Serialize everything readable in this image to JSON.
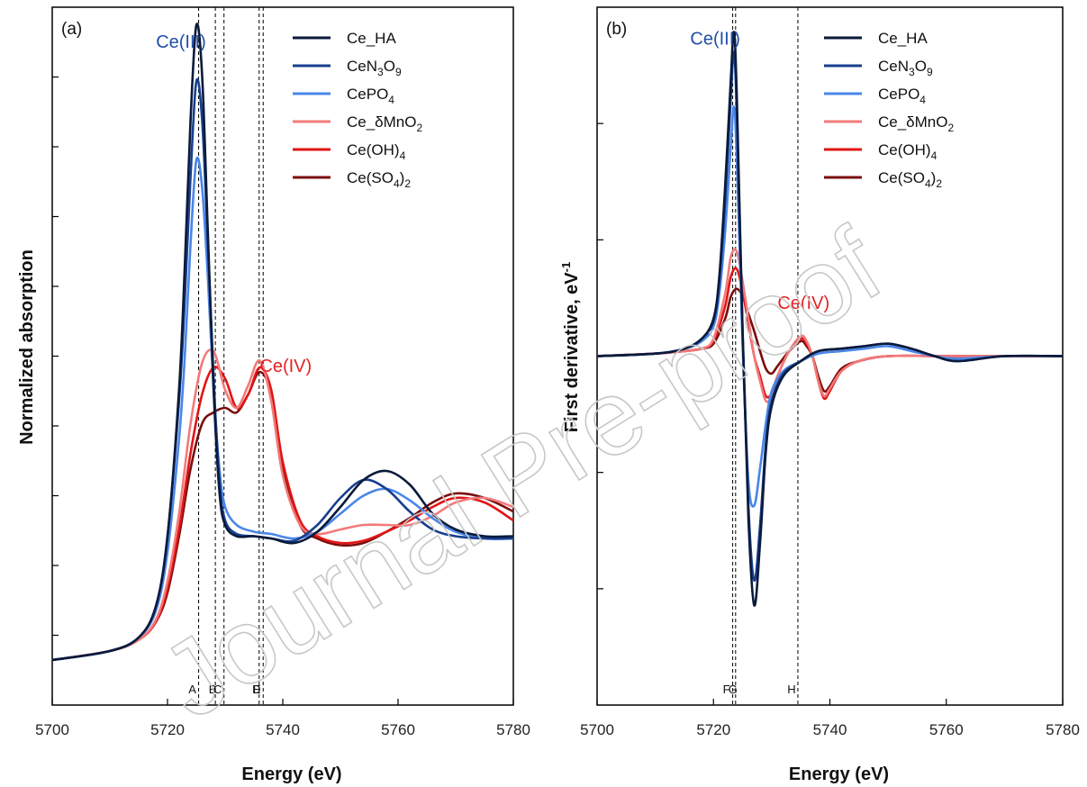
{
  "watermark": "Journal Pre-proof",
  "colors": {
    "Ce_HA": "#0a1a3a",
    "CeN3O9": "#173f8f",
    "CePO4": "#4a86e8",
    "Ce_dMnO2": "#f27a7a",
    "Ce(OH)4": "#e11515",
    "Ce(SO4)2": "#7a0d0d",
    "annotation_ce3": "#1f4fa8",
    "annotation_ce4": "#e32222"
  },
  "legend": [
    {
      "key": "Ce_HA",
      "parts": [
        {
          "t": "Ce_HA"
        }
      ]
    },
    {
      "key": "CeN3O9",
      "parts": [
        {
          "t": "CeN"
        },
        {
          "t": "3",
          "sub": true
        },
        {
          "t": "O"
        },
        {
          "t": "9",
          "sub": true
        }
      ]
    },
    {
      "key": "CePO4",
      "parts": [
        {
          "t": "CePO"
        },
        {
          "t": "4",
          "sub": true
        }
      ]
    },
    {
      "key": "Ce_dMnO2",
      "parts": [
        {
          "t": "Ce_δMnO"
        },
        {
          "t": "2",
          "sub": true
        }
      ]
    },
    {
      "key": "Ce(OH)4",
      "parts": [
        {
          "t": "Ce(OH)"
        },
        {
          "t": "4",
          "sub": true
        }
      ]
    },
    {
      "key": "Ce(SO4)2",
      "parts": [
        {
          "t": "Ce(SO"
        },
        {
          "t": "4",
          "sub": true
        },
        {
          "t": ")"
        },
        {
          "t": "2",
          "sub": true
        }
      ]
    }
  ],
  "chart_data": [
    {
      "type": "line",
      "panel": "(a)",
      "xlabel": "Energy (eV)",
      "ylabel": "Normalized absorption",
      "xlim": [
        5700,
        5780
      ],
      "ylim": [
        -0.2,
        2.9
      ],
      "x_ticks": [
        "5700",
        "5720",
        "5740",
        "5760",
        "5780"
      ],
      "annotations": [
        {
          "text": "Ce(III)",
          "x": 5718,
          "y": 2.72,
          "color": "annotation_ce3"
        },
        {
          "text": "Ce(IV)",
          "x": 5736,
          "y": 1.28,
          "color": "annotation_ce4"
        }
      ],
      "markers": [
        {
          "label": "A",
          "x": 5725.4
        },
        {
          "label": "B",
          "x": 5728.3
        },
        {
          "label": "C",
          "x": 5729.8
        },
        {
          "label": "D",
          "x": 5735.9
        },
        {
          "label": "E",
          "x": 5736.6
        }
      ],
      "series": [
        {
          "name": "Ce_HA",
          "key": "Ce_HA",
          "x": [
            5700,
            5710,
            5715,
            5718,
            5720,
            5722,
            5723,
            5724,
            5725,
            5726,
            5727,
            5728,
            5729,
            5730,
            5732,
            5735,
            5738,
            5742,
            5746,
            5750,
            5754,
            5758,
            5762,
            5766,
            5770,
            5775,
            5780
          ],
          "y": [
            0.0,
            0.04,
            0.1,
            0.24,
            0.55,
            1.2,
            1.75,
            2.4,
            2.82,
            2.6,
            1.9,
            1.2,
            0.75,
            0.6,
            0.55,
            0.55,
            0.54,
            0.52,
            0.57,
            0.68,
            0.8,
            0.84,
            0.78,
            0.65,
            0.58,
            0.55,
            0.55
          ]
        },
        {
          "name": "CeN3O9",
          "key": "CeN3O9",
          "x": [
            5700,
            5710,
            5715,
            5718,
            5720,
            5722,
            5723,
            5724,
            5725,
            5726,
            5727,
            5728,
            5729,
            5730,
            5732,
            5735,
            5738,
            5742,
            5746,
            5750,
            5754,
            5758,
            5762,
            5766,
            5770,
            5775,
            5780
          ],
          "y": [
            0.0,
            0.04,
            0.1,
            0.24,
            0.55,
            1.15,
            1.6,
            2.15,
            2.57,
            2.4,
            1.85,
            1.25,
            0.8,
            0.62,
            0.56,
            0.55,
            0.54,
            0.53,
            0.6,
            0.72,
            0.8,
            0.76,
            0.66,
            0.58,
            0.55,
            0.54,
            0.54
          ]
        },
        {
          "name": "CePO4",
          "key": "CePO4",
          "x": [
            5700,
            5710,
            5715,
            5718,
            5720,
            5722,
            5723,
            5724,
            5725,
            5726,
            5727,
            5728,
            5729,
            5730,
            5732,
            5735,
            5738,
            5742,
            5746,
            5750,
            5754,
            5758,
            5762,
            5766,
            5770,
            5775,
            5780
          ],
          "y": [
            0.0,
            0.04,
            0.1,
            0.22,
            0.48,
            0.98,
            1.35,
            1.85,
            2.22,
            2.1,
            1.7,
            1.2,
            0.85,
            0.68,
            0.6,
            0.57,
            0.56,
            0.54,
            0.57,
            0.65,
            0.73,
            0.76,
            0.71,
            0.63,
            0.57,
            0.54,
            0.54
          ]
        },
        {
          "name": "Ce_δMnO2",
          "key": "Ce_dMnO2",
          "x": [
            5700,
            5710,
            5715,
            5718,
            5720,
            5722,
            5724,
            5726,
            5728,
            5730,
            5732,
            5734,
            5736,
            5738,
            5740,
            5743,
            5746,
            5750,
            5754,
            5758,
            5762,
            5766,
            5770,
            5775,
            5780
          ],
          "y": [
            0.0,
            0.04,
            0.09,
            0.18,
            0.35,
            0.65,
            1.05,
            1.32,
            1.37,
            1.2,
            1.12,
            1.22,
            1.33,
            1.15,
            0.82,
            0.6,
            0.56,
            0.58,
            0.6,
            0.6,
            0.6,
            0.64,
            0.7,
            0.72,
            0.68
          ]
        },
        {
          "name": "Ce(OH)4",
          "key": "Ce(OH)4",
          "x": [
            5700,
            5710,
            5715,
            5718,
            5720,
            5722,
            5724,
            5726,
            5728,
            5730,
            5732,
            5734,
            5736,
            5738,
            5740,
            5743,
            5746,
            5750,
            5754,
            5758,
            5762,
            5766,
            5770,
            5775,
            5780
          ],
          "y": [
            0.0,
            0.04,
            0.09,
            0.17,
            0.32,
            0.58,
            0.92,
            1.18,
            1.3,
            1.25,
            1.12,
            1.18,
            1.3,
            1.2,
            0.88,
            0.62,
            0.55,
            0.52,
            0.53,
            0.57,
            0.62,
            0.68,
            0.72,
            0.7,
            0.62
          ]
        },
        {
          "name": "Ce(SO4)2",
          "key": "Ce(SO4)2",
          "x": [
            5700,
            5710,
            5715,
            5718,
            5720,
            5722,
            5724,
            5726,
            5728,
            5730,
            5732,
            5734,
            5736,
            5738,
            5740,
            5743,
            5746,
            5750,
            5754,
            5758,
            5762,
            5766,
            5770,
            5775,
            5780
          ],
          "y": [
            0.0,
            0.04,
            0.09,
            0.17,
            0.3,
            0.55,
            0.85,
            1.05,
            1.1,
            1.12,
            1.1,
            1.18,
            1.28,
            1.18,
            0.86,
            0.6,
            0.54,
            0.51,
            0.52,
            0.57,
            0.63,
            0.7,
            0.74,
            0.72,
            0.66
          ]
        }
      ]
    },
    {
      "type": "line",
      "panel": "(b)",
      "xlabel": "Energy (eV)",
      "ylabel": "First derivative, eV",
      "ylabel_sup": "-1",
      "xlim": [
        5700,
        5780
      ],
      "ylim": [
        -1.4,
        1.4
      ],
      "x_ticks": [
        "5700",
        "5720",
        "5740",
        "5760",
        "5780"
      ],
      "annotations": [
        {
          "text": "Ce(III)",
          "x": 5716,
          "y": 1.25,
          "color": "annotation_ce3"
        },
        {
          "text": "Ce(IV)",
          "x": 5731,
          "y": 0.19,
          "color": "annotation_ce4"
        }
      ],
      "markers": [
        {
          "label": "F",
          "x": 5723.3
        },
        {
          "label": "G",
          "x": 5723.8
        },
        {
          "label": "H",
          "x": 5734.5
        }
      ],
      "series": [
        {
          "name": "Ce_HA",
          "key": "Ce_HA",
          "x": [
            5700,
            5710,
            5715,
            5718,
            5720,
            5721,
            5722,
            5723,
            5723.5,
            5724,
            5725,
            5726,
            5727,
            5728,
            5729,
            5730,
            5732,
            5735,
            5738,
            5742,
            5746,
            5750,
            5754,
            5758,
            5762,
            5770,
            5780
          ],
          "y": [
            0.0,
            0.01,
            0.03,
            0.07,
            0.15,
            0.32,
            0.68,
            1.12,
            1.3,
            1.05,
            0.1,
            -0.65,
            -1.0,
            -0.75,
            -0.38,
            -0.2,
            -0.08,
            -0.02,
            0.02,
            0.03,
            0.04,
            0.05,
            0.03,
            0.0,
            -0.02,
            0.0,
            0.0
          ]
        },
        {
          "name": "CeN3O9",
          "key": "CeN3O9",
          "x": [
            5700,
            5710,
            5715,
            5718,
            5720,
            5721,
            5722,
            5723,
            5723.5,
            5724,
            5725,
            5726,
            5727,
            5728,
            5729,
            5730,
            5732,
            5735,
            5738,
            5742,
            5746,
            5750,
            5754,
            5758,
            5762,
            5770,
            5780
          ],
          "y": [
            0.0,
            0.01,
            0.03,
            0.07,
            0.14,
            0.3,
            0.62,
            1.05,
            1.22,
            0.98,
            0.1,
            -0.6,
            -0.9,
            -0.68,
            -0.35,
            -0.18,
            -0.07,
            -0.02,
            0.02,
            0.03,
            0.04,
            0.05,
            0.03,
            0.0,
            -0.02,
            0.0,
            0.0
          ]
        },
        {
          "name": "CePO4",
          "key": "CePO4",
          "x": [
            5700,
            5710,
            5715,
            5718,
            5720,
            5721,
            5722,
            5723,
            5723.5,
            5724,
            5725,
            5726,
            5727,
            5728,
            5729,
            5730,
            5732,
            5735,
            5738,
            5742,
            5746,
            5750,
            5754,
            5758,
            5762,
            5770,
            5780
          ],
          "y": [
            0.0,
            0.01,
            0.03,
            0.06,
            0.12,
            0.25,
            0.5,
            0.85,
            1.0,
            0.8,
            0.05,
            -0.5,
            -0.6,
            -0.45,
            -0.27,
            -0.14,
            -0.06,
            -0.02,
            0.01,
            0.02,
            0.03,
            0.04,
            0.02,
            0.0,
            -0.01,
            0.0,
            0.0
          ]
        },
        {
          "name": "Ce_δMnO2",
          "key": "Ce_dMnO2",
          "x": [
            5700,
            5710,
            5715,
            5718,
            5720,
            5722,
            5723,
            5724,
            5725,
            5726,
            5727,
            5728,
            5729,
            5730,
            5731,
            5733,
            5735,
            5736,
            5737,
            5738,
            5739,
            5740,
            5742,
            5745,
            5750,
            5760,
            5780
          ],
          "y": [
            0.0,
            0.01,
            0.02,
            0.03,
            0.07,
            0.25,
            0.4,
            0.42,
            0.3,
            0.15,
            0.0,
            -0.1,
            -0.18,
            -0.16,
            -0.08,
            0.02,
            0.08,
            0.06,
            0.0,
            -0.1,
            -0.16,
            -0.13,
            -0.06,
            -0.02,
            0.0,
            0.0,
            0.0
          ]
        },
        {
          "name": "Ce(OH)4",
          "key": "Ce(OH)4",
          "x": [
            5700,
            5710,
            5715,
            5718,
            5720,
            5722,
            5723,
            5724,
            5725,
            5726,
            5727,
            5728,
            5729,
            5730,
            5731,
            5733,
            5735,
            5736,
            5737,
            5738,
            5739,
            5740,
            5742,
            5745,
            5750,
            5760,
            5780
          ],
          "y": [
            0.0,
            0.01,
            0.02,
            0.03,
            0.06,
            0.2,
            0.32,
            0.35,
            0.26,
            0.13,
            0.0,
            -0.08,
            -0.16,
            -0.15,
            -0.08,
            0.02,
            0.07,
            0.05,
            0.0,
            -0.1,
            -0.17,
            -0.14,
            -0.06,
            -0.02,
            0.0,
            0.0,
            0.0
          ]
        },
        {
          "name": "Ce(SO4)2",
          "key": "Ce(SO4)2",
          "x": [
            5700,
            5710,
            5715,
            5718,
            5720,
            5722,
            5723,
            5724,
            5725,
            5726,
            5727,
            5728,
            5729,
            5730,
            5731,
            5733,
            5735,
            5736,
            5737,
            5738,
            5739,
            5740,
            5742,
            5745,
            5750,
            5760,
            5780
          ],
          "y": [
            0.0,
            0.01,
            0.02,
            0.03,
            0.05,
            0.15,
            0.24,
            0.27,
            0.24,
            0.17,
            0.1,
            0.02,
            -0.05,
            -0.07,
            -0.04,
            0.02,
            0.06,
            0.04,
            0.0,
            -0.08,
            -0.14,
            -0.12,
            -0.05,
            -0.02,
            0.0,
            0.0,
            0.0
          ]
        }
      ]
    }
  ]
}
